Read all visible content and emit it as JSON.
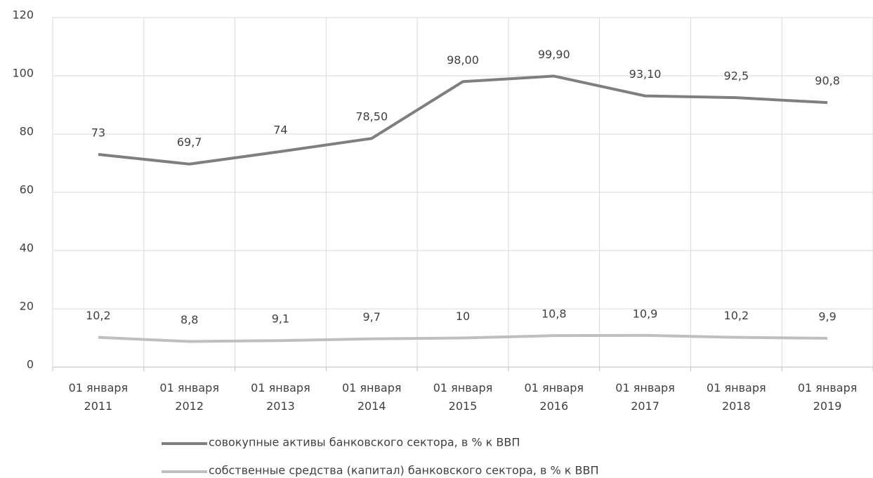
{
  "chart_data": {
    "type": "line",
    "categories": [
      "01 января 2011",
      "01 января 2012",
      "01 января 2013",
      "01 января 2014",
      "01 января 2015",
      "01 января 2016",
      "01 января 2017",
      "01 января 2018",
      "01 января 2019"
    ],
    "series": [
      {
        "name": "совокупные активы банковского сектора, в % к ВВП",
        "color": "#7f7f7f",
        "values": [
          73,
          69.7,
          74,
          78.5,
          98,
          99.9,
          93.1,
          92.5,
          90.8
        ],
        "value_labels": [
          "73",
          "69,7",
          "74",
          "78,50",
          "98,00",
          "99,90",
          "93,10",
          "92,5",
          "90,8"
        ]
      },
      {
        "name": "собственные средства (капитал) банковского сектора, в % к ВВП",
        "color": "#bfbfbf",
        "values": [
          10.2,
          8.8,
          9.1,
          9.7,
          10,
          10.8,
          10.9,
          10.2,
          9.9
        ],
        "value_labels": [
          "10,2",
          "8,8",
          "9,1",
          "9,7",
          "10",
          "10,8",
          "10,9",
          "10,2",
          "9,9"
        ]
      }
    ],
    "ylim": [
      0,
      120
    ],
    "yticks": [
      0,
      20,
      40,
      60,
      80,
      100,
      120
    ],
    "grid": true
  }
}
